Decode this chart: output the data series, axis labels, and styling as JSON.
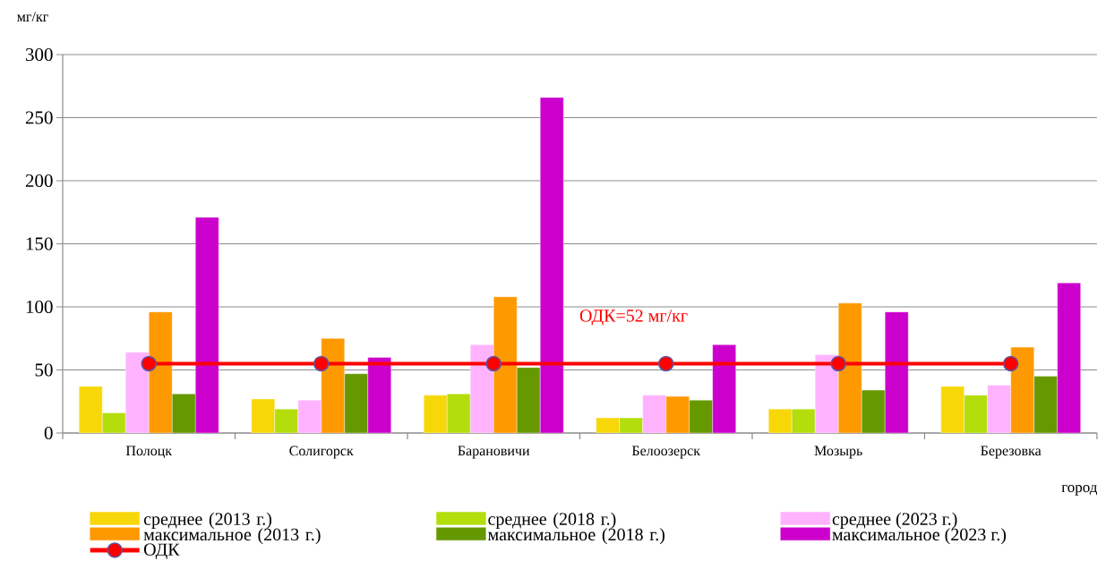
{
  "chart_data": {
    "type": "bar",
    "xlabel": "город",
    "ylabel": "мг/кг",
    "categories": [
      "Полоцк",
      "Солигорск",
      "Барановичи",
      "Белоозерск",
      "Мозырь",
      "Березовка"
    ],
    "series": [
      {
        "name": "среднее (2013 г.)",
        "color": "#f7d708",
        "values": [
          37,
          27,
          30,
          12,
          19,
          37
        ]
      },
      {
        "name": "среднее (2018 г.)",
        "color": "#b3de0c",
        "values": [
          16,
          19,
          31,
          12,
          19,
          30
        ]
      },
      {
        "name": "среднее (2023 г.)",
        "color": "#ffb3ff",
        "values": [
          64,
          26,
          70,
          30,
          62,
          38
        ]
      },
      {
        "name": "максимальное (2013 г.)",
        "color": "#ff9900",
        "values": [
          96,
          75,
          108,
          29,
          103,
          68
        ]
      },
      {
        "name": "максимальное (2018 г.)",
        "color": "#669900",
        "values": [
          31,
          47,
          52,
          26,
          34,
          45
        ]
      },
      {
        "name": "максимальное (2023 г.)",
        "color": "#cc00cc",
        "values": [
          171,
          60,
          266,
          70,
          96,
          119
        ]
      },
      {
        "name": "ОДК",
        "type": "line",
        "color": "#ff0000",
        "marker": "circle",
        "values": [
          55,
          55,
          55,
          55,
          55,
          55
        ]
      }
    ],
    "annotations": [
      "ОДК=52 мг/кг"
    ],
    "ylim": [
      0,
      300
    ],
    "yticks": [
      0,
      50,
      100,
      150,
      200,
      250,
      300
    ],
    "grid": "y",
    "legend": "bottom"
  }
}
